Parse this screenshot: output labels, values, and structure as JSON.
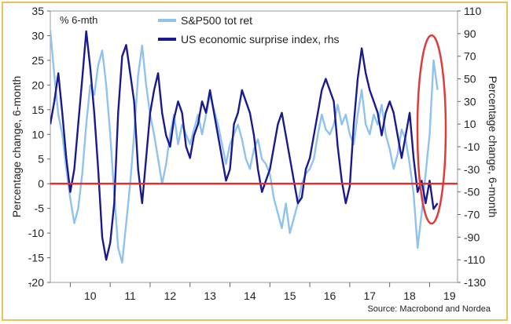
{
  "chart_data": {
    "type": "line",
    "title": "% 6-mth",
    "ylabel_left": "Percentage change, 6-month",
    "ylabel_right": "Percentage change, 6-month",
    "x_ticks": [
      "10",
      "11",
      "12",
      "13",
      "14",
      "15",
      "16",
      "17",
      "18",
      "19"
    ],
    "x_range": [
      2009.5,
      2019.7
    ],
    "ylim_left": [
      -20,
      35
    ],
    "ylim_right": [
      -130,
      110
    ],
    "yticks_left": [
      -20,
      -15,
      -10,
      -5,
      0,
      5,
      10,
      15,
      20,
      25,
      30,
      35
    ],
    "yticks_right": [
      -130,
      -110,
      -90,
      -70,
      -50,
      -30,
      -10,
      10,
      30,
      50,
      70,
      90,
      110
    ],
    "zero_line": 0,
    "legend": "top-left",
    "annotation": "red ellipse highlighting early 2019",
    "series": [
      {
        "name": "S&P500 tot ret",
        "axis": "left",
        "color": "#8fc3ee",
        "x": [
          2009.5,
          2009.6,
          2009.7,
          2009.8,
          2009.9,
          2010.0,
          2010.1,
          2010.2,
          2010.3,
          2010.4,
          2010.5,
          2010.6,
          2010.7,
          2010.8,
          2010.9,
          2011.0,
          2011.1,
          2011.2,
          2011.3,
          2011.4,
          2011.5,
          2011.6,
          2011.7,
          2011.8,
          2011.9,
          2012.0,
          2012.1,
          2012.2,
          2012.3,
          2012.4,
          2012.5,
          2012.6,
          2012.7,
          2012.8,
          2012.9,
          2013.0,
          2013.1,
          2013.2,
          2013.3,
          2013.4,
          2013.5,
          2013.6,
          2013.7,
          2013.8,
          2013.9,
          2014.0,
          2014.1,
          2014.2,
          2014.3,
          2014.4,
          2014.5,
          2014.6,
          2014.7,
          2014.8,
          2014.9,
          2015.0,
          2015.1,
          2015.2,
          2015.3,
          2015.4,
          2015.5,
          2015.6,
          2015.7,
          2015.8,
          2015.9,
          2016.0,
          2016.1,
          2016.2,
          2016.3,
          2016.4,
          2016.5,
          2016.6,
          2016.7,
          2016.8,
          2016.9,
          2017.0,
          2017.1,
          2017.2,
          2017.3,
          2017.4,
          2017.5,
          2017.6,
          2017.7,
          2017.8,
          2017.9,
          2018.0,
          2018.1,
          2018.2,
          2018.3,
          2018.4,
          2018.5,
          2018.6,
          2018.7,
          2018.8,
          2018.9,
          2019.0,
          2019.1,
          2019.2
        ],
        "values": [
          31,
          22,
          14,
          10,
          3,
          -3,
          -8,
          -5,
          2,
          12,
          20,
          18,
          24,
          27,
          20,
          10,
          -2,
          -13,
          -16,
          -8,
          0,
          10,
          22,
          28,
          20,
          14,
          10,
          5,
          0,
          4,
          10,
          14,
          8,
          12,
          10,
          8,
          11,
          14,
          10,
          14,
          18,
          15,
          12,
          8,
          4,
          8,
          10,
          12,
          9,
          5,
          3,
          7,
          9,
          5,
          4,
          2,
          -3,
          -6,
          -9,
          -4,
          -10,
          -7,
          -4,
          0,
          2,
          3,
          5,
          10,
          14,
          11,
          10,
          12,
          16,
          12,
          14,
          10,
          8,
          14,
          19,
          12,
          10,
          14,
          12,
          16,
          10,
          7,
          3,
          6,
          11,
          9,
          4,
          -2,
          -13,
          -6,
          2,
          10,
          25,
          19
        ]
      },
      {
        "name": "US economic surprise index, rhs",
        "axis": "right",
        "color": "#1a1a8e",
        "x": [
          2009.5,
          2009.6,
          2009.7,
          2009.8,
          2009.9,
          2010.0,
          2010.1,
          2010.2,
          2010.3,
          2010.4,
          2010.5,
          2010.6,
          2010.7,
          2010.8,
          2010.9,
          2011.0,
          2011.1,
          2011.2,
          2011.3,
          2011.4,
          2011.5,
          2011.6,
          2011.7,
          2011.8,
          2011.9,
          2012.0,
          2012.1,
          2012.2,
          2012.3,
          2012.4,
          2012.5,
          2012.6,
          2012.7,
          2012.8,
          2012.9,
          2013.0,
          2013.1,
          2013.2,
          2013.3,
          2013.4,
          2013.5,
          2013.6,
          2013.7,
          2013.8,
          2013.9,
          2014.0,
          2014.1,
          2014.2,
          2014.3,
          2014.4,
          2014.5,
          2014.6,
          2014.7,
          2014.8,
          2014.9,
          2015.0,
          2015.1,
          2015.2,
          2015.3,
          2015.4,
          2015.5,
          2015.6,
          2015.7,
          2015.8,
          2015.9,
          2016.0,
          2016.1,
          2016.2,
          2016.3,
          2016.4,
          2016.5,
          2016.6,
          2016.7,
          2016.8,
          2016.9,
          2017.0,
          2017.1,
          2017.2,
          2017.3,
          2017.4,
          2017.5,
          2017.6,
          2017.7,
          2017.8,
          2017.9,
          2018.0,
          2018.1,
          2018.2,
          2018.3,
          2018.4,
          2018.5,
          2018.6,
          2018.7,
          2018.8,
          2018.9,
          2019.0,
          2019.1,
          2019.2
        ],
        "values": [
          10,
          30,
          55,
          20,
          -20,
          -50,
          -30,
          10,
          50,
          92,
          60,
          20,
          -30,
          -90,
          -110,
          -95,
          -60,
          20,
          70,
          80,
          55,
          30,
          -30,
          -60,
          -20,
          20,
          40,
          55,
          20,
          0,
          -10,
          15,
          30,
          20,
          -10,
          -20,
          0,
          10,
          30,
          20,
          40,
          20,
          0,
          -20,
          -40,
          -30,
          10,
          20,
          40,
          30,
          20,
          0,
          -30,
          -50,
          -40,
          -30,
          -10,
          10,
          20,
          0,
          -20,
          -40,
          -60,
          -55,
          -30,
          -20,
          0,
          20,
          40,
          50,
          40,
          30,
          -10,
          -40,
          -60,
          -45,
          10,
          50,
          77,
          55,
          40,
          30,
          20,
          0,
          20,
          30,
          20,
          0,
          -20,
          0,
          20,
          -20,
          -50,
          -40,
          -60,
          -40,
          -65,
          -60
        ]
      }
    ],
    "source": "Source: Macrobond and Nordea"
  }
}
